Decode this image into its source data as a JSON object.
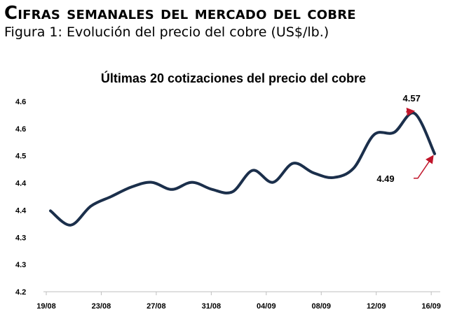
{
  "header": {
    "section_title": "Cifras semanales del mercado del cobre",
    "figure_caption": "Figura 1: Evolución del precio del cobre (US$/lb.)"
  },
  "chart_data": {
    "type": "line",
    "title": "Últimas 20 cotizaciones del precio del cobre",
    "xlabel": "",
    "ylabel": "",
    "line_color": "#1b2f4b",
    "annotation_color": "#c0152a",
    "grid": false,
    "y_tick_labels": [
      "4.2",
      "4.3",
      "4.3",
      "4.4",
      "4.4",
      "4.5",
      "4.6",
      "4.6"
    ],
    "x_tick_labels": [
      "19/08",
      "23/08",
      "27/08",
      "31/08",
      "04/09",
      "08/09",
      "12/09",
      "16/09"
    ],
    "series": [
      {
        "values": [
          4.37,
          4.34,
          4.38,
          4.4,
          4.42,
          4.43,
          4.415,
          4.43,
          4.415,
          4.41,
          4.455,
          4.43,
          4.47,
          4.45,
          4.44,
          4.46,
          4.53,
          4.535,
          4.575,
          4.49
        ]
      }
    ],
    "ylim": [
      4.2,
      4.6
    ],
    "annotations": [
      {
        "label": "4.57",
        "point_index": 18
      },
      {
        "label": "4.49",
        "point_index": 19
      }
    ]
  }
}
